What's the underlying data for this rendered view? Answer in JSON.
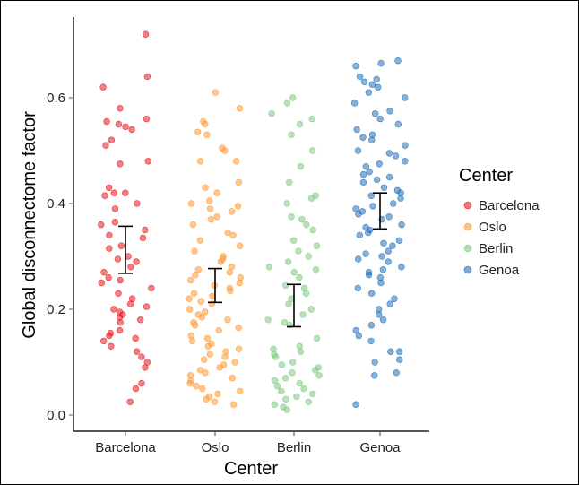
{
  "chart_data": {
    "type": "scatter",
    "title": "",
    "xlabel": "Center",
    "ylabel": "Global disconnectome factor",
    "ylim": [
      -0.035,
      0.76
    ],
    "yticks": [
      0.0,
      0.2,
      0.4,
      0.6
    ],
    "ytick_labels": [
      "0.0",
      "0.2",
      "0.4",
      "0.6"
    ],
    "categories": [
      "Barcelona",
      "Oslo",
      "Berlin",
      "Genoa"
    ],
    "grid": false,
    "legend": {
      "title": "Center",
      "position": "right",
      "entries": [
        "Barcelona",
        "Oslo",
        "Berlin",
        "Genoa"
      ]
    },
    "colors": {
      "Barcelona": "#e41a1c",
      "Oslo": "#ff9933",
      "Berlin": "#7fc97f",
      "Genoa": "#1f6fba",
      "errorbar": "#000000",
      "axis": "#555555"
    },
    "series": [
      {
        "name": "Barcelona",
        "error_bar": {
          "low": 0.268,
          "mean": 0.312,
          "high": 0.357
        },
        "values": [
          0.72,
          0.64,
          0.62,
          0.58,
          0.56,
          0.555,
          0.55,
          0.545,
          0.54,
          0.52,
          0.51,
          0.48,
          0.475,
          0.43,
          0.42,
          0.42,
          0.415,
          0.4,
          0.39,
          0.365,
          0.36,
          0.35,
          0.34,
          0.335,
          0.32,
          0.315,
          0.3,
          0.295,
          0.29,
          0.28,
          0.27,
          0.26,
          0.255,
          0.25,
          0.24,
          0.23,
          0.22,
          0.21,
          0.205,
          0.2,
          0.195,
          0.19,
          0.185,
          0.18,
          0.175,
          0.16,
          0.155,
          0.15,
          0.145,
          0.14,
          0.13,
          0.12,
          0.11,
          0.1,
          0.09,
          0.06,
          0.05,
          0.025
        ]
      },
      {
        "name": "Oslo",
        "error_bar": {
          "low": 0.213,
          "mean": 0.245,
          "high": 0.277
        },
        "values": [
          0.61,
          0.58,
          0.555,
          0.55,
          0.535,
          0.53,
          0.505,
          0.5,
          0.48,
          0.48,
          0.44,
          0.43,
          0.42,
          0.405,
          0.4,
          0.395,
          0.39,
          0.385,
          0.375,
          0.37,
          0.36,
          0.345,
          0.34,
          0.33,
          0.32,
          0.31,
          0.3,
          0.295,
          0.29,
          0.28,
          0.275,
          0.27,
          0.265,
          0.26,
          0.255,
          0.25,
          0.245,
          0.24,
          0.235,
          0.23,
          0.225,
          0.22,
          0.215,
          0.21,
          0.2,
          0.195,
          0.19,
          0.185,
          0.18,
          0.175,
          0.17,
          0.165,
          0.16,
          0.15,
          0.145,
          0.14,
          0.135,
          0.13,
          0.125,
          0.12,
          0.115,
          0.11,
          0.105,
          0.1,
          0.095,
          0.09,
          0.085,
          0.08,
          0.075,
          0.07,
          0.065,
          0.06,
          0.055,
          0.05,
          0.045,
          0.04,
          0.035,
          0.03,
          0.025,
          0.02
        ]
      },
      {
        "name": "Berlin",
        "error_bar": {
          "low": 0.167,
          "mean": 0.207,
          "high": 0.247
        },
        "values": [
          0.6,
          0.59,
          0.57,
          0.56,
          0.55,
          0.53,
          0.5,
          0.47,
          0.44,
          0.415,
          0.41,
          0.4,
          0.375,
          0.37,
          0.36,
          0.35,
          0.33,
          0.32,
          0.31,
          0.3,
          0.29,
          0.28,
          0.275,
          0.27,
          0.26,
          0.245,
          0.24,
          0.23,
          0.22,
          0.21,
          0.2,
          0.19,
          0.18,
          0.175,
          0.17,
          0.145,
          0.13,
          0.125,
          0.12,
          0.115,
          0.11,
          0.1,
          0.095,
          0.09,
          0.085,
          0.08,
          0.075,
          0.07,
          0.065,
          0.06,
          0.055,
          0.05,
          0.045,
          0.04,
          0.035,
          0.03,
          0.025,
          0.02,
          0.015,
          0.01
        ]
      },
      {
        "name": "Genoa",
        "error_bar": {
          "low": 0.352,
          "mean": 0.386,
          "high": 0.42
        },
        "values": [
          0.67,
          0.665,
          0.66,
          0.64,
          0.635,
          0.63,
          0.625,
          0.62,
          0.61,
          0.6,
          0.59,
          0.575,
          0.57,
          0.56,
          0.55,
          0.54,
          0.53,
          0.525,
          0.52,
          0.51,
          0.5,
          0.495,
          0.49,
          0.48,
          0.475,
          0.47,
          0.46,
          0.455,
          0.45,
          0.445,
          0.44,
          0.43,
          0.425,
          0.42,
          0.415,
          0.41,
          0.4,
          0.395,
          0.39,
          0.385,
          0.38,
          0.375,
          0.37,
          0.36,
          0.355,
          0.35,
          0.345,
          0.34,
          0.33,
          0.325,
          0.32,
          0.31,
          0.305,
          0.3,
          0.295,
          0.29,
          0.28,
          0.275,
          0.27,
          0.265,
          0.26,
          0.25,
          0.24,
          0.23,
          0.22,
          0.21,
          0.2,
          0.19,
          0.18,
          0.17,
          0.16,
          0.15,
          0.14,
          0.12,
          0.12,
          0.105,
          0.1,
          0.08,
          0.075,
          0.02
        ]
      }
    ]
  }
}
